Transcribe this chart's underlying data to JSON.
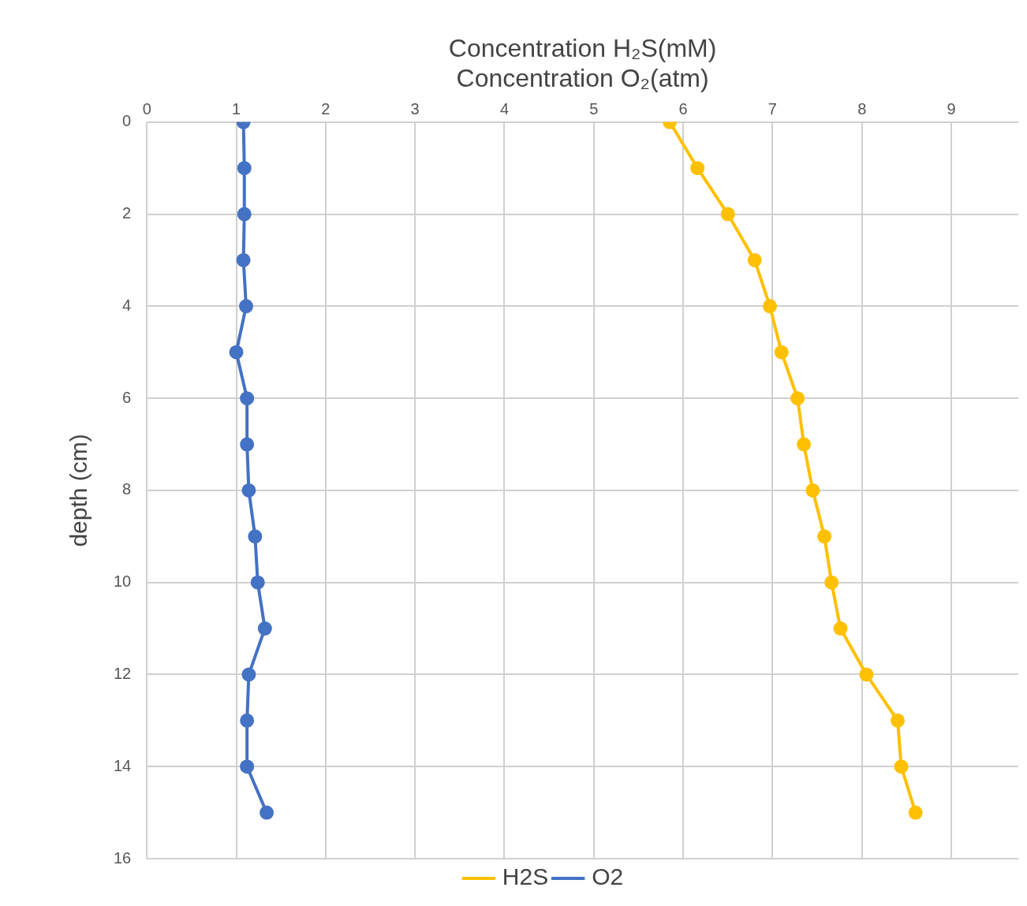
{
  "chart_data": {
    "type": "line",
    "xlabel": "Concentration H₂S(mM)\nConcentration O₂(atm)",
    "ylabel": "depth (cm)",
    "xlim": [
      0,
      9.75
    ],
    "xticks": [
      0,
      1,
      2,
      3,
      4,
      5,
      6,
      7,
      8,
      9
    ],
    "ylim": [
      16,
      0
    ],
    "yticks": [
      0,
      2,
      4,
      6,
      8,
      10,
      12,
      14,
      16
    ],
    "grid": true,
    "legend": "bottom",
    "marker": "circle",
    "line_style": "solid",
    "series": [
      {
        "name": "H2S",
        "color": "#ffc000",
        "x": [
          5.85,
          6.16,
          6.5,
          6.8,
          6.97,
          7.1,
          7.28,
          7.35,
          7.45,
          7.58,
          7.66,
          7.76,
          8.05,
          8.4,
          8.44,
          8.6
        ],
        "values": [
          0,
          1,
          2,
          3,
          4,
          5,
          6,
          7,
          8,
          9,
          10,
          11,
          12,
          13,
          14,
          15
        ]
      },
      {
        "name": "O2",
        "color": "#4472c4",
        "x": [
          1.08,
          1.09,
          1.09,
          1.08,
          1.11,
          1.0,
          1.12,
          1.12,
          1.14,
          1.21,
          1.24,
          1.32,
          1.14,
          1.12,
          1.12,
          1.34
        ],
        "values": [
          0,
          1,
          2,
          3,
          4,
          5,
          6,
          7,
          8,
          9,
          10,
          11,
          12,
          13,
          14,
          15
        ]
      }
    ]
  }
}
